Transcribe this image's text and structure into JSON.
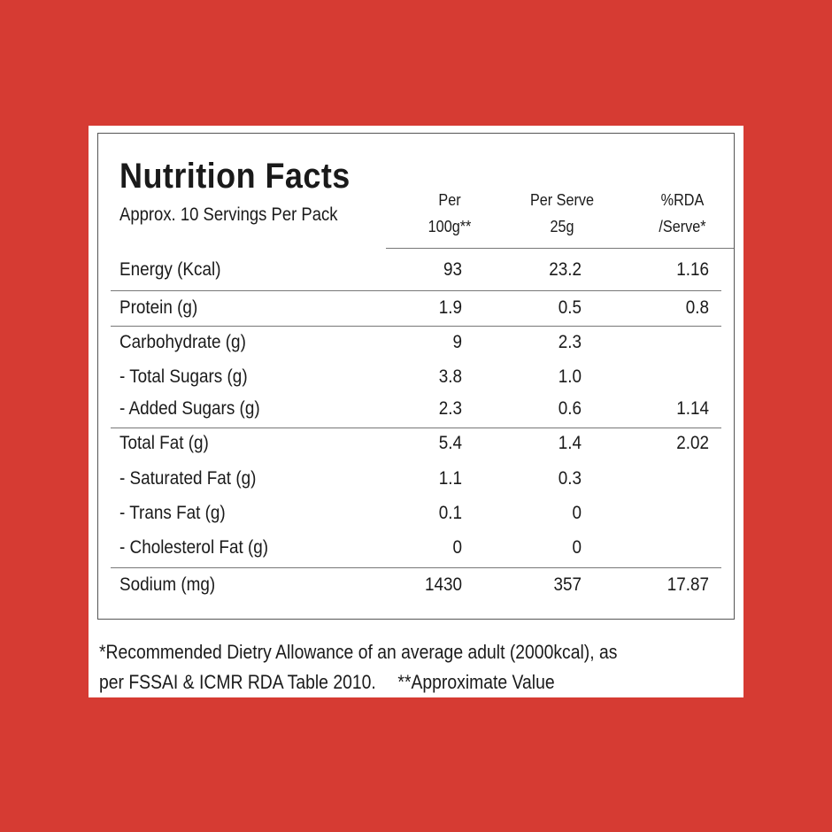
{
  "header": {
    "title": "Nutrition Facts",
    "subtitle": "Approx. 10 Servings Per Pack"
  },
  "columns": [
    [
      "Per",
      "100g**"
    ],
    [
      "Per Serve",
      "25g"
    ],
    [
      "%RDA",
      "/Serve*"
    ]
  ],
  "rows": [
    [
      "Energy (Kcal)",
      "93",
      "23.2",
      "1.16"
    ],
    [
      "Protein (g)",
      "1.9",
      "0.5",
      "0.8"
    ],
    [
      "Carbohydrate (g)",
      "9",
      "2.3",
      null
    ],
    [
      "- Total Sugars (g)",
      "3.8",
      "1.0",
      null
    ],
    [
      "- Added Sugars (g)",
      "2.3",
      "0.6",
      "1.14"
    ],
    [
      "Total Fat (g)",
      "5.4",
      "1.4",
      "2.02"
    ],
    [
      "- Saturated Fat (g)",
      "1.1",
      "0.3",
      null
    ],
    [
      "- Trans Fat (g)",
      "0.1",
      "0",
      null
    ],
    [
      "- Cholesterol Fat (g)",
      "0",
      "0",
      null
    ],
    [
      "Sodium (mg)",
      "1430",
      "357",
      "17.87"
    ]
  ],
  "footnote": {
    "line1": "*Recommended Dietry Allowance of an average adult (2000kcal), as",
    "line2a": "per FSSAI & ICMR RDA Table 2010.",
    "line2b": "**Approximate Value"
  }
}
